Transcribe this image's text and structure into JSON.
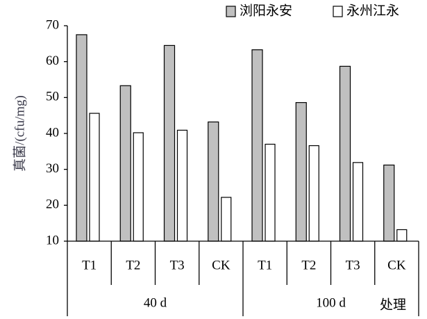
{
  "chart_data": {
    "type": "bar",
    "y_label": "真菌/(cfu/mg)",
    "x_label": "处理",
    "categories": [
      "T1",
      "T2",
      "T3",
      "CK",
      "T1",
      "T2",
      "T3",
      "CK"
    ],
    "groups": [
      "40 d",
      "100 d"
    ],
    "series": [
      {
        "name": "浏阳永安",
        "color": "#c0c0c0",
        "values": [
          67.5,
          53.3,
          64.5,
          43.2,
          63.3,
          48.6,
          58.7,
          31.2
        ]
      },
      {
        "name": "永州江永",
        "color": "#ffffff",
        "values": [
          45.6,
          40.2,
          40.9,
          22.2,
          37.0,
          36.6,
          31.9,
          13.2
        ]
      }
    ],
    "ylim": [
      10,
      70
    ],
    "yticks": [
      10,
      20,
      30,
      40,
      50,
      60,
      70
    ]
  }
}
